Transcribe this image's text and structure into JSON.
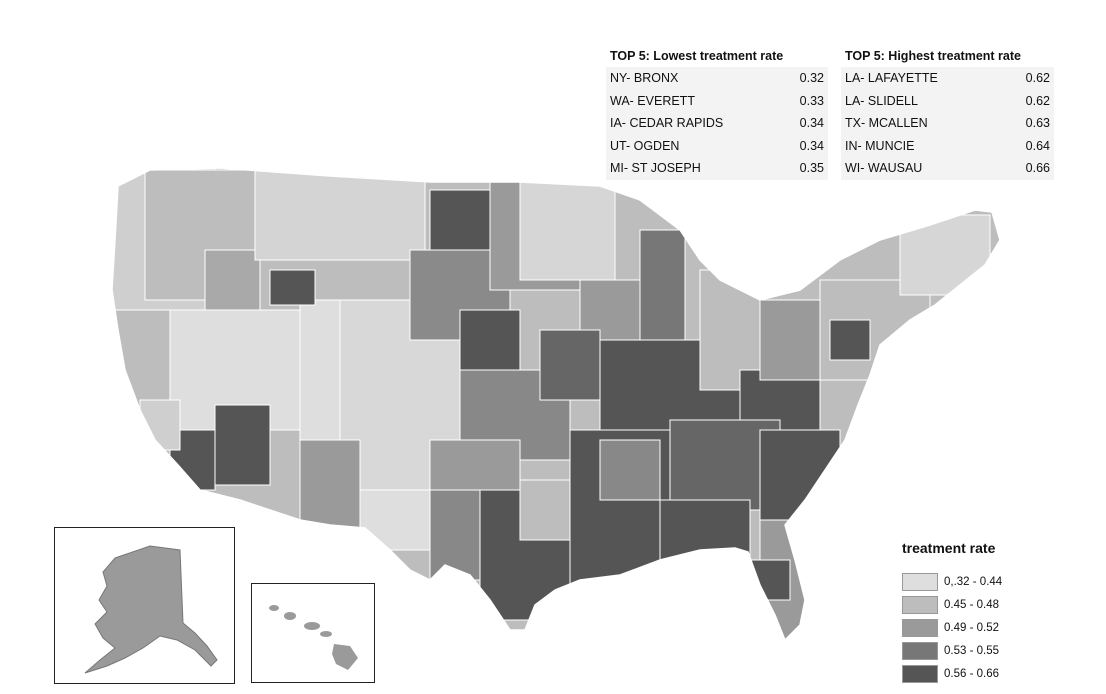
{
  "lowest": {
    "title": "TOP 5: Lowest treatment rate",
    "rows": [
      {
        "name": "NY- BRONX",
        "value": "0.32"
      },
      {
        "name": "WA- EVERETT",
        "value": "0.33"
      },
      {
        "name": "IA- CEDAR RAPIDS",
        "value": "0.34"
      },
      {
        "name": "UT- OGDEN",
        "value": "0.34"
      },
      {
        "name": "MI- ST JOSEPH",
        "value": "0.35"
      }
    ]
  },
  "highest": {
    "title": "TOP 5: Highest treatment rate",
    "rows": [
      {
        "name": "LA- LAFAYETTE",
        "value": "0.62"
      },
      {
        "name": "LA- SLIDELL",
        "value": "0.62"
      },
      {
        "name": "TX- MCALLEN",
        "value": "0.63"
      },
      {
        "name": "IN- MUNCIE",
        "value": "0.64"
      },
      {
        "name": "WI- WAUSAU",
        "value": "0.66"
      }
    ]
  },
  "legend": {
    "title": "treatment rate",
    "bins": [
      {
        "label": "0,.32 - 0.44",
        "color": "#dedede"
      },
      {
        "label": "0.45 - 0.48",
        "color": "#bdbdbd"
      },
      {
        "label": "0.49 - 0.52",
        "color": "#9a9a9a"
      },
      {
        "label": "0.53 - 0.55",
        "color": "#777777"
      },
      {
        "label": "0.56 - 0.66",
        "color": "#555555"
      }
    ]
  }
}
